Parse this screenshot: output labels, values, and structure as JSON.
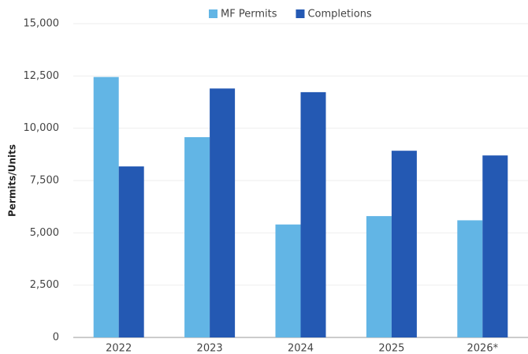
{
  "chart_data": {
    "type": "bar",
    "ylabel": "Permits/Units",
    "categories": [
      "2022",
      "2023",
      "2024",
      "2025",
      "2026*"
    ],
    "series": [
      {
        "name": "MF Permits",
        "color": "#62b5e5",
        "values": [
          12450,
          9575,
          5400,
          5800,
          5600
        ]
      },
      {
        "name": "Completions",
        "color": "#2459b3",
        "values": [
          8175,
          11900,
          11725,
          8925,
          8700
        ]
      }
    ],
    "ylim": [
      0,
      15000
    ],
    "yticks": [
      0,
      {
        "value": 2500,
        "label": "2,500"
      },
      {
        "value": 5000,
        "label": "5,000"
      },
      {
        "value": 7500,
        "label": "7,500"
      },
      {
        "value": 10000,
        "label": "10,000"
      },
      {
        "value": 12500,
        "label": "12,500"
      },
      {
        "value": 15000,
        "label": "15,000"
      }
    ],
    "grid": true,
    "legend": "top"
  }
}
